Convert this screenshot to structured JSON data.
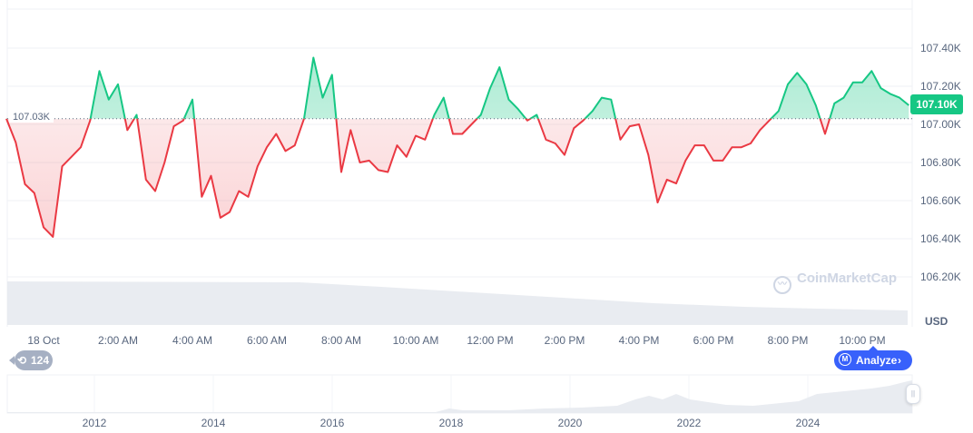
{
  "chart_data": {
    "type": "area",
    "currency": "USD",
    "baseline": {
      "value": 107.03,
      "label": "107.03K"
    },
    "current_price": {
      "value": 107.1,
      "label": "107.10K"
    },
    "colors": {
      "up": "#16c784",
      "down": "#ea3943",
      "accent": "#3861fb"
    },
    "ylim": [
      106.1,
      107.55
    ],
    "y_ticks": [
      "107.40K",
      "107.20K",
      "107.00K",
      "106.80K",
      "106.60K",
      "106.40K",
      "106.20K"
    ],
    "y_tick_values": [
      107.4,
      107.2,
      107.0,
      106.8,
      106.6,
      106.4,
      106.2
    ],
    "x_ticks": [
      "18 Oct",
      "2:00 AM",
      "4:00 AM",
      "6:00 AM",
      "8:00 AM",
      "10:00 AM",
      "12:00 PM",
      "2:00 PM",
      "4:00 PM",
      "6:00 PM",
      "8:00 PM",
      "10:00 PM"
    ],
    "x_tick_hours": [
      0,
      2,
      4,
      6,
      8,
      10,
      12,
      14,
      16,
      18,
      20,
      22
    ],
    "time_hours_start": -1,
    "time_step_minutes": 15,
    "prices_k": [
      107.03,
      106.906,
      106.686,
      106.64,
      106.46,
      106.41,
      106.78,
      106.83,
      106.88,
      107.02,
      107.28,
      107.13,
      107.21,
      106.97,
      107.05,
      106.71,
      106.65,
      106.8,
      106.99,
      107.02,
      107.13,
      106.62,
      106.73,
      106.51,
      106.54,
      106.65,
      106.62,
      106.78,
      106.88,
      106.95,
      106.86,
      106.89,
      107.03,
      107.35,
      107.14,
      107.26,
      106.75,
      106.97,
      106.8,
      106.81,
      106.76,
      106.75,
      106.89,
      106.83,
      106.94,
      106.92,
      107.05,
      107.14,
      106.95,
      106.95,
      107.0,
      107.05,
      107.19,
      107.3,
      107.13,
      107.08,
      107.02,
      107.05,
      106.92,
      106.9,
      106.84,
      106.98,
      107.02,
      107.07,
      107.14,
      107.13,
      106.92,
      106.99,
      107.0,
      106.84,
      106.59,
      106.71,
      106.69,
      106.81,
      106.89,
      106.89,
      106.81,
      106.81,
      106.88,
      106.88,
      106.9,
      106.97,
      107.02,
      107.07,
      107.21,
      107.27,
      107.21,
      107.1,
      106.95,
      107.11,
      107.14,
      107.22,
      107.22,
      107.28,
      107.19,
      107.16,
      107.14,
      107.1
    ],
    "y_unit_label": "USD"
  },
  "navigator": {
    "years": [
      "2012",
      "2014",
      "2016",
      "2018",
      "2020",
      "2022",
      "2024"
    ]
  },
  "history_badge": {
    "count": "124",
    "icon": "history-icon"
  },
  "analyze_button": {
    "label": "Analyze",
    "icon": "cmc-ai-icon",
    "chevron": "›"
  },
  "watermark": "CoinMarketCap"
}
